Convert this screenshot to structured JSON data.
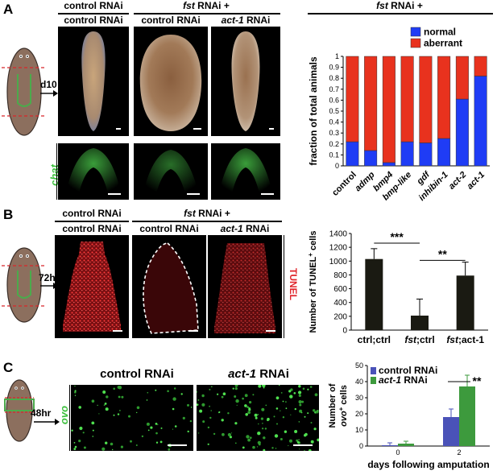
{
  "panels": {
    "A": {
      "label": "A",
      "header_left": "control RNAi",
      "header_mid_prefix": "fst",
      "header_mid_suffix": " RNAi +",
      "col1": "control RNAi",
      "col2": "control RNAi",
      "col3_prefix": "act-1",
      "col3_suffix": " RNAi",
      "time": "d10",
      "stain": "chat",
      "chart_header_prefix": "fst",
      "chart_header_suffix": " RNAi +"
    },
    "B": {
      "label": "B",
      "header_left": "control RNAi",
      "header_mid_prefix": "fst",
      "header_mid_suffix": " RNAi +",
      "col1": "control RNAi",
      "col2": "control RNAi",
      "col3_prefix": "act-1",
      "col3_suffix": " RNAi",
      "time": "72hr",
      "stain": "TUNEL"
    },
    "C": {
      "label": "C",
      "col1": "control RNAi",
      "col2_prefix": "act-1",
      "col2_suffix": " RNAi",
      "time": "48hr",
      "stain": "ovo"
    }
  },
  "colors": {
    "normal": "#1f3cf5",
    "aberrant": "#e8321e",
    "control_bar": "#4a52b8",
    "act1_bar": "#3d9a3d",
    "tunel": "#e0242a",
    "green": "#3cbf3c"
  },
  "chart_data": [
    {
      "type": "bar",
      "stacked": true,
      "categories": [
        "control",
        "admp",
        "bmp4",
        "bmp-like",
        "gdf",
        "inhibin-1",
        "act-2",
        "act-1"
      ],
      "series": [
        {
          "name": "normal",
          "values": [
            0.22,
            0.14,
            0.03,
            0.22,
            0.21,
            0.25,
            0.61,
            0.82
          ]
        },
        {
          "name": "aberrant",
          "values": [
            0.78,
            0.86,
            0.97,
            0.78,
            0.79,
            0.75,
            0.39,
            0.18
          ]
        }
      ],
      "ylabel": "fraction of total animals",
      "ylim": [
        0,
        1
      ],
      "yticks": [
        "0",
        "0.1",
        "0.2",
        "0.3",
        "0.4",
        "0.5",
        "0.6",
        "0.7",
        "0.8",
        "0.9",
        "1"
      ],
      "legend": "top-right"
    },
    {
      "type": "bar",
      "categories": [
        "ctrl;ctrl",
        "fst;ctrl",
        "fst;act-1"
      ],
      "cat_parts": [
        [
          "ctrl;ctrl",
          ""
        ],
        [
          "fst",
          ";ctrl"
        ],
        [
          "fst",
          ";act-1"
        ]
      ],
      "values": [
        1030,
        210,
        790
      ],
      "errors": [
        150,
        240,
        195
      ],
      "ylabel": "Number of TUNEL+ cells",
      "ylabel_main": "Number of TUNEL",
      "ylabel_sup": "+",
      "ylabel_tail": " cells",
      "ylim": [
        0,
        1400
      ],
      "yticks": [
        "0",
        "200",
        "400",
        "600",
        "800",
        "1000",
        "1200",
        "1400"
      ],
      "significance": [
        "***",
        "**"
      ]
    },
    {
      "type": "bar",
      "categories": [
        "0",
        "2"
      ],
      "series": [
        {
          "name": "control RNAi",
          "values": [
            0.5,
            18
          ],
          "errors": [
            1.5,
            5
          ]
        },
        {
          "name": "act-1 RNAi",
          "values": [
            1.5,
            37
          ],
          "errors": [
            1.5,
            7
          ]
        }
      ],
      "legend_labels": [
        [
          "control RNAi",
          ""
        ],
        [
          "act-1",
          " RNAi"
        ]
      ],
      "xlabel": "days following amputation",
      "ylabel_line1": "Number of",
      "ylabel_line2_main": "ovo",
      "ylabel_line2_sup": "+",
      "ylabel_line2_tail": " cells",
      "ylim": [
        0,
        50
      ],
      "yticks": [
        "0",
        "10",
        "20",
        "30",
        "40",
        "50"
      ],
      "significance": "**"
    }
  ]
}
